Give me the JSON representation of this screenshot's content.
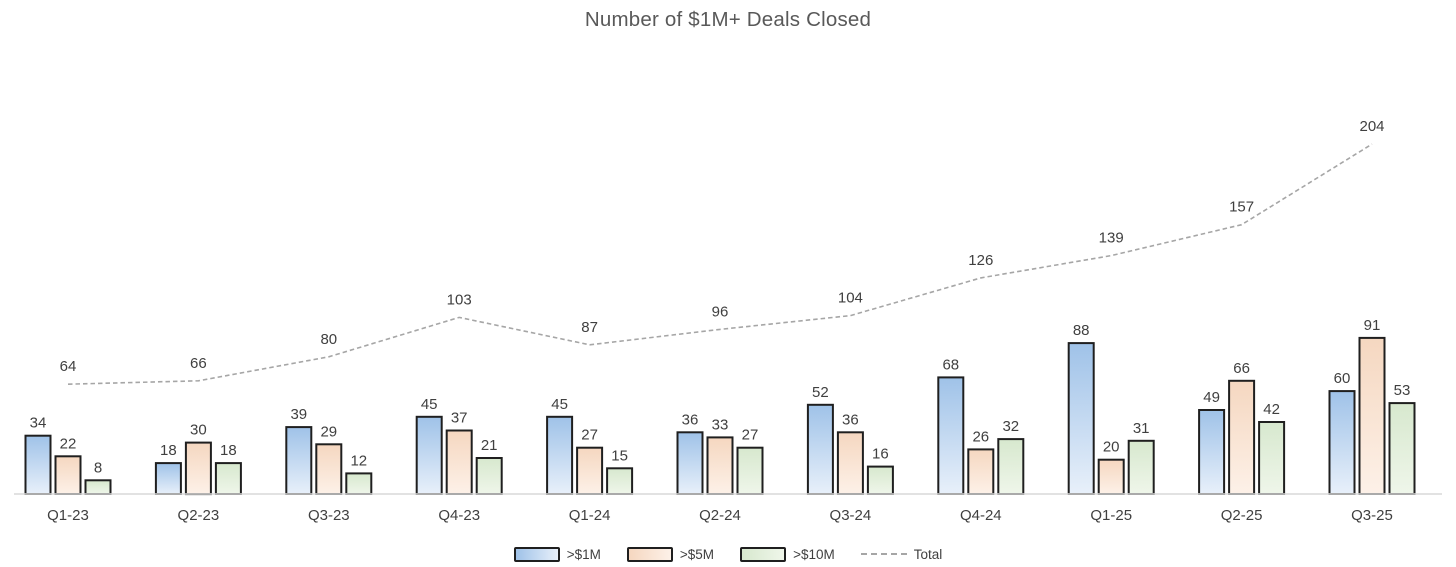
{
  "chart_data": {
    "type": "bar",
    "title": "Number of $1M+ Deals Closed",
    "categories": [
      "Q1-23",
      "Q2-23",
      "Q3-23",
      "Q4-23",
      "Q1-24",
      "Q2-24",
      "Q3-24",
      "Q4-24",
      "Q1-25",
      "Q2-25",
      "Q3-25"
    ],
    "series": [
      {
        "name": ">$1M",
        "values": [
          34,
          18,
          39,
          45,
          45,
          36,
          52,
          68,
          88,
          49,
          60
        ],
        "color_top": "#9fc2e8",
        "color_bottom": "#e8f0fa"
      },
      {
        "name": ">$5M",
        "values": [
          22,
          30,
          29,
          37,
          27,
          33,
          36,
          26,
          20,
          66,
          91
        ],
        "color_top": "#f5d7c0",
        "color_bottom": "#fdf1e8"
      },
      {
        "name": ">$10M",
        "values": [
          8,
          18,
          12,
          21,
          15,
          27,
          16,
          32,
          31,
          42,
          53
        ],
        "color_top": "#d7e8ce",
        "color_bottom": "#eff6ea"
      }
    ],
    "line_series": {
      "name": "Total",
      "values": [
        64,
        66,
        80,
        103,
        87,
        96,
        104,
        126,
        139,
        157,
        204
      ],
      "color": "#a6a6a6",
      "style": "dashed"
    },
    "xlabel": "",
    "ylabel": "",
    "ylim": [
      0,
      240
    ],
    "grid": false,
    "legend_position": "bottom",
    "data_labels": true,
    "bar_outline_color": "#1f1f1f",
    "label_color": "#404040",
    "axis_line_color": "#d9d9d9",
    "title_color": "#595959"
  }
}
